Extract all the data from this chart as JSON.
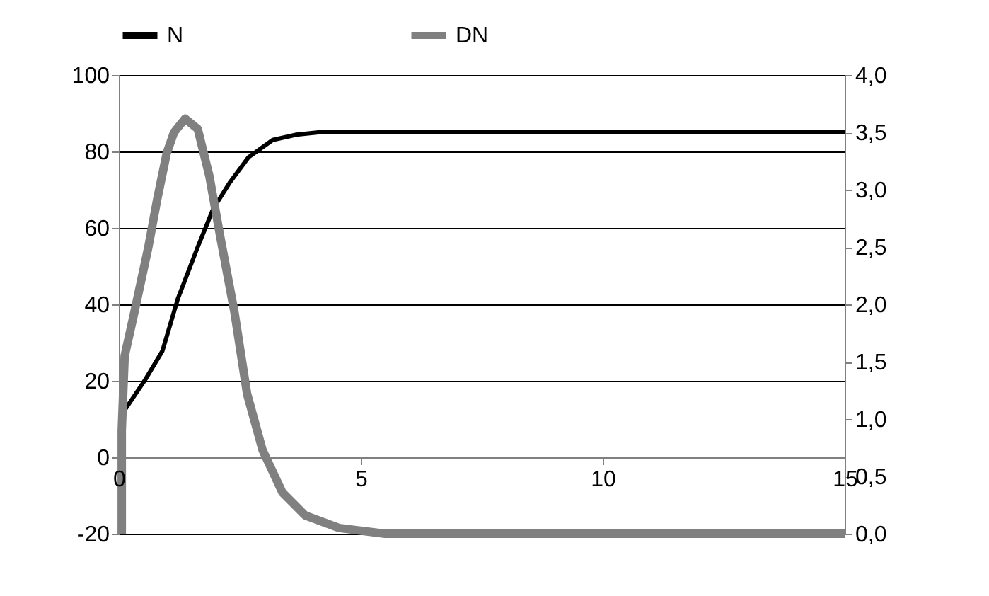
{
  "chart_data": {
    "type": "line",
    "legend": "top",
    "grid": "y",
    "line_style": "solid",
    "marker": "none",
    "xlim": [
      0,
      15
    ],
    "xticks": [
      0,
      5,
      10,
      15
    ],
    "ylim": [
      -20,
      100
    ],
    "yticks": [
      -20,
      0,
      20,
      40,
      60,
      80,
      100
    ],
    "y2lim": [
      0,
      4
    ],
    "y2ticks": [
      {
        "value": 0,
        "label": "0,0"
      },
      {
        "value": 0.5,
        "label": "0,5"
      },
      {
        "value": 1,
        "label": "1,0"
      },
      {
        "value": 1.5,
        "label": "1,5"
      },
      {
        "value": 2,
        "label": "2,0"
      },
      {
        "value": 2.5,
        "label": "2,5"
      },
      {
        "value": 3,
        "label": "3,0"
      },
      {
        "value": 3.5,
        "label": "3,5"
      },
      {
        "value": 4,
        "label": "4,0"
      }
    ],
    "series": [
      {
        "name": "N",
        "color": "#000000",
        "x": [
          0.05,
          0.55,
          0.9,
          1.22,
          1.63,
          1.95,
          2.3,
          2.68,
          3.18,
          3.67,
          4.26,
          15
        ],
        "values": [
          11,
          20.4,
          27.8,
          41.5,
          55,
          65,
          72,
          78.5,
          83,
          84.4,
          85.2,
          85.2
        ]
      },
      {
        "name": "DN",
        "color": "#808080",
        "axis": "y2",
        "x": [
          0.06,
          0.06,
          0.12,
          0.32,
          0.61,
          0.79,
          0.99,
          1.14,
          1.37,
          1.63,
          1.87,
          2.1,
          2.39,
          2.65,
          2.97,
          3.38,
          3.85,
          4.55,
          5.5,
          15
        ],
        "values": [
          0,
          0.9,
          1.55,
          1.93,
          2.5,
          2.91,
          3.32,
          3.5,
          3.62,
          3.53,
          3.12,
          2.58,
          1.93,
          1.22,
          0.73,
          0.36,
          0.16,
          0.05,
          0,
          0
        ]
      }
    ]
  }
}
